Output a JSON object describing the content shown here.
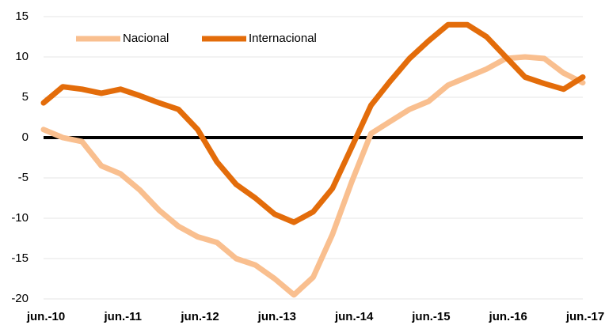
{
  "chart_data": {
    "type": "line",
    "categories": [
      "jun.-10",
      null,
      null,
      null,
      "jun.-11",
      null,
      null,
      null,
      "jun.-12",
      null,
      null,
      null,
      "jun.-13",
      null,
      null,
      null,
      "jun.-14",
      null,
      null,
      null,
      "jun.-15",
      null,
      null,
      null,
      "jun.-16",
      null,
      null,
      null,
      "jun.-17"
    ],
    "series": [
      {
        "name": "Nacional",
        "color": "#f9bf8f",
        "values": [
          1,
          0,
          -0.5,
          -3.5,
          -4.5,
          -6.5,
          -9,
          -11,
          -12.3,
          -13,
          -15,
          -15.8,
          -17.5,
          -19.5,
          -17.3,
          -12,
          -5.5,
          0.5,
          2,
          3.5,
          4.5,
          6.5,
          7.5,
          8.5,
          9.8,
          10,
          9.8,
          8,
          6.8
        ]
      },
      {
        "name": "Internacional",
        "color": "#e36c0a",
        "values": [
          4.3,
          6.3,
          6,
          5.5,
          6,
          5.2,
          4.3,
          3.5,
          1,
          -3,
          -5.8,
          -7.5,
          -9.5,
          -10.5,
          -9.2,
          -6.3,
          -1.2,
          4,
          7,
          9.8,
          12,
          14,
          14,
          12.5,
          10,
          7.5,
          6.7,
          6,
          7.5
        ]
      }
    ],
    "ylim": [
      -20,
      15
    ],
    "yticks": [
      -20,
      -15,
      -10,
      -5,
      0,
      5,
      10,
      15
    ],
    "grid": true,
    "legend": "top-left"
  }
}
